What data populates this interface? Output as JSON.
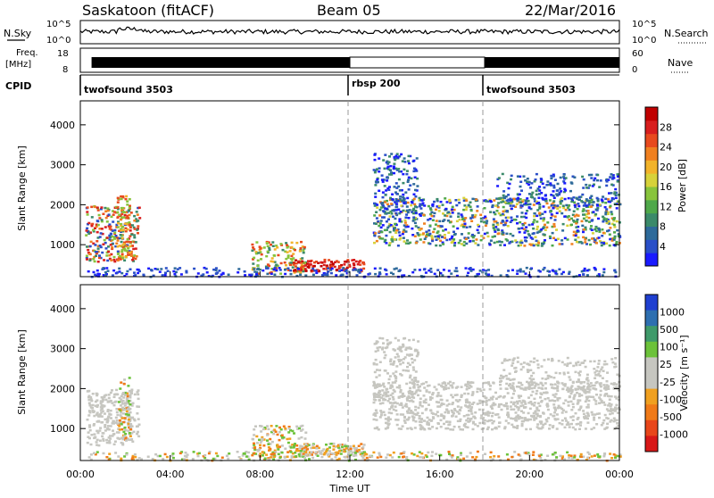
{
  "header": {
    "station": "Saskatoon (fitACF)",
    "beam": "Beam 05",
    "date": "22/Mar/2016"
  },
  "panels": {
    "noise": {
      "left_label": "N.Sky",
      "right_label": "N.Search",
      "left_ticks": [
        "10^5",
        "10^0"
      ],
      "right_ticks": [
        "10^5",
        "10^0"
      ]
    },
    "freq": {
      "left_label_1": "Freq.",
      "left_label_2": "[MHz]",
      "left_ticks": [
        "18",
        "8"
      ],
      "right_label": "Nave",
      "right_ticks": [
        "60",
        "0"
      ]
    },
    "cpid": {
      "label": "CPID",
      "modes": [
        {
          "name": "twofsound 3503",
          "start_hour": 0
        },
        {
          "name": "rbsp 200",
          "start_hour": 12
        },
        {
          "name": "twofsound 3503",
          "start_hour": 18
        }
      ]
    }
  },
  "chart_data": [
    {
      "type": "heatmap",
      "name": "power",
      "ylabel": "Slant Range [km]",
      "ylim": [
        200,
        4600
      ],
      "yticks": [
        "1000",
        "2000",
        "3000",
        "4000"
      ],
      "xlim": [
        0,
        24
      ],
      "colorbar": {
        "label": "Power [dB]",
        "ticks": [
          "4",
          "8",
          "12",
          "16",
          "20",
          "24",
          "28"
        ],
        "colors": [
          "#1a1aff",
          "#2a4fc8",
          "#2e6a9a",
          "#3b8a6a",
          "#4fa84a",
          "#88c43c",
          "#d7d23a",
          "#f2b32a",
          "#f08020",
          "#e84a1e",
          "#d81e1e",
          "#c00000"
        ]
      }
    },
    {
      "type": "heatmap",
      "name": "velocity",
      "ylabel": "Slant Range [km]",
      "ylim": [
        200,
        4600
      ],
      "yticks": [
        "1000",
        "2000",
        "3000",
        "4000"
      ],
      "xlim": [
        0,
        24
      ],
      "colorbar": {
        "label": "Velocity [m s⁻¹]",
        "ticks": [
          "1000",
          "500",
          "100",
          "25",
          "-25",
          "-100",
          "-500",
          "-1000"
        ],
        "colors": [
          "#1f3fd0",
          "#2e6fb0",
          "#3f9a6a",
          "#6cc23a",
          "#c6c6c0",
          "#c6c6c0",
          "#f0a020",
          "#f07a18",
          "#e8461a",
          "#d81818"
        ]
      }
    }
  ],
  "time_axis": {
    "label": "Time UT",
    "ticks": [
      "00:00",
      "04:00",
      "08:00",
      "12:00",
      "16:00",
      "20:00",
      "00:00"
    ]
  }
}
